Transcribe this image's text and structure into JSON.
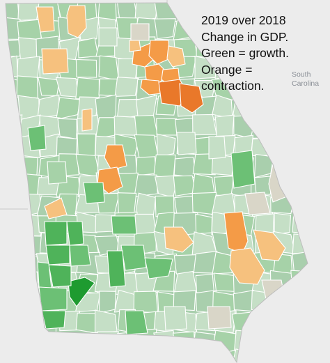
{
  "legend": {
    "line1": "2019 over 2018",
    "line2": "Change in GDP.",
    "line3": "Green = growth.",
    "line4": "Orange =",
    "line5": "contraction."
  },
  "neighbor_state": {
    "line1": "South",
    "line2": "Carolina"
  },
  "colors": {
    "background": "#ececec",
    "state_base": "#a9cfad",
    "growth_light": "#c5dfc6",
    "growth_mid": "#a6d2a8",
    "growth_strong": "#6cc075",
    "growth_stronger": "#4fb35a",
    "growth_max": "#1e9b30",
    "neutral": "#d9d6c8",
    "contraction_light": "#f6c17e",
    "contraction_mid": "#f49b47",
    "contraction_strong": "#e9782a"
  },
  "counties": [
    {
      "name": "county-ne-1",
      "cls": "contraction_light"
    },
    {
      "name": "county-ne-2",
      "cls": "contraction_mid"
    },
    {
      "name": "county-ne-3",
      "cls": "contraction_mid"
    },
    {
      "name": "county-ne-4",
      "cls": "contraction_mid"
    },
    {
      "name": "county-ne-5",
      "cls": "contraction_light"
    },
    {
      "name": "county-ne-6",
      "cls": "contraction_mid"
    },
    {
      "name": "county-ne-7",
      "cls": "contraction_mid"
    },
    {
      "name": "county-ne-8",
      "cls": "contraction_strong"
    },
    {
      "name": "county-ne-9",
      "cls": "contraction_strong"
    },
    {
      "name": "county-ne-10",
      "cls": "contraction_light"
    },
    {
      "name": "county-n-1",
      "cls": "contraction_light"
    },
    {
      "name": "county-n-2",
      "cls": "contraction_light"
    },
    {
      "name": "county-n-3",
      "cls": "contraction_light"
    },
    {
      "name": "county-c-1",
      "cls": "contraction_mid"
    },
    {
      "name": "county-c-2",
      "cls": "contraction_mid"
    },
    {
      "name": "county-w-1",
      "cls": "contraction_light"
    },
    {
      "name": "county-se-1",
      "cls": "contraction_mid"
    },
    {
      "name": "county-se-2",
      "cls": "contraction_light"
    },
    {
      "name": "county-se-3",
      "cls": "contraction_light"
    },
    {
      "name": "county-c-3",
      "cls": "contraction_light"
    },
    {
      "name": "county-sw-1",
      "cls": "growth_max"
    },
    {
      "name": "county-sw-2",
      "cls": "growth_stronger"
    },
    {
      "name": "county-sw-3",
      "cls": "growth_stronger"
    },
    {
      "name": "county-sw-4",
      "cls": "growth_stronger"
    },
    {
      "name": "county-sw-5",
      "cls": "growth_strong"
    },
    {
      "name": "county-sw-6",
      "cls": "growth_stronger"
    },
    {
      "name": "county-sw-7",
      "cls": "growth_strong"
    },
    {
      "name": "county-sw-8",
      "cls": "growth_strong"
    },
    {
      "name": "county-sw-9",
      "cls": "growth_stronger"
    },
    {
      "name": "county-sw-10",
      "cls": "growth_strong"
    },
    {
      "name": "county-sw-11",
      "cls": "growth_strong"
    },
    {
      "name": "county-sw-12",
      "cls": "growth_stronger"
    },
    {
      "name": "county-s-1",
      "cls": "growth_strong"
    },
    {
      "name": "county-nw-1",
      "cls": "growth_strong"
    },
    {
      "name": "county-e-1",
      "cls": "growth_strong"
    },
    {
      "name": "county-w-2",
      "cls": "growth_strong"
    },
    {
      "name": "county-c-4",
      "cls": "growth_strong"
    },
    {
      "name": "county-n-4",
      "cls": "neutral"
    },
    {
      "name": "county-e-2",
      "cls": "neutral"
    },
    {
      "name": "county-se-4",
      "cls": "neutral"
    },
    {
      "name": "county-se-5",
      "cls": "neutral"
    },
    {
      "name": "county-s-2",
      "cls": "neutral"
    },
    {
      "name": "county-n-5",
      "cls": "growth_light"
    },
    {
      "name": "county-c-5",
      "cls": "growth_light"
    },
    {
      "name": "county-e-3",
      "cls": "growth_light"
    },
    {
      "name": "county-s-3",
      "cls": "growth_light"
    },
    {
      "name": "county-w-3",
      "cls": "growth_mid"
    }
  ]
}
